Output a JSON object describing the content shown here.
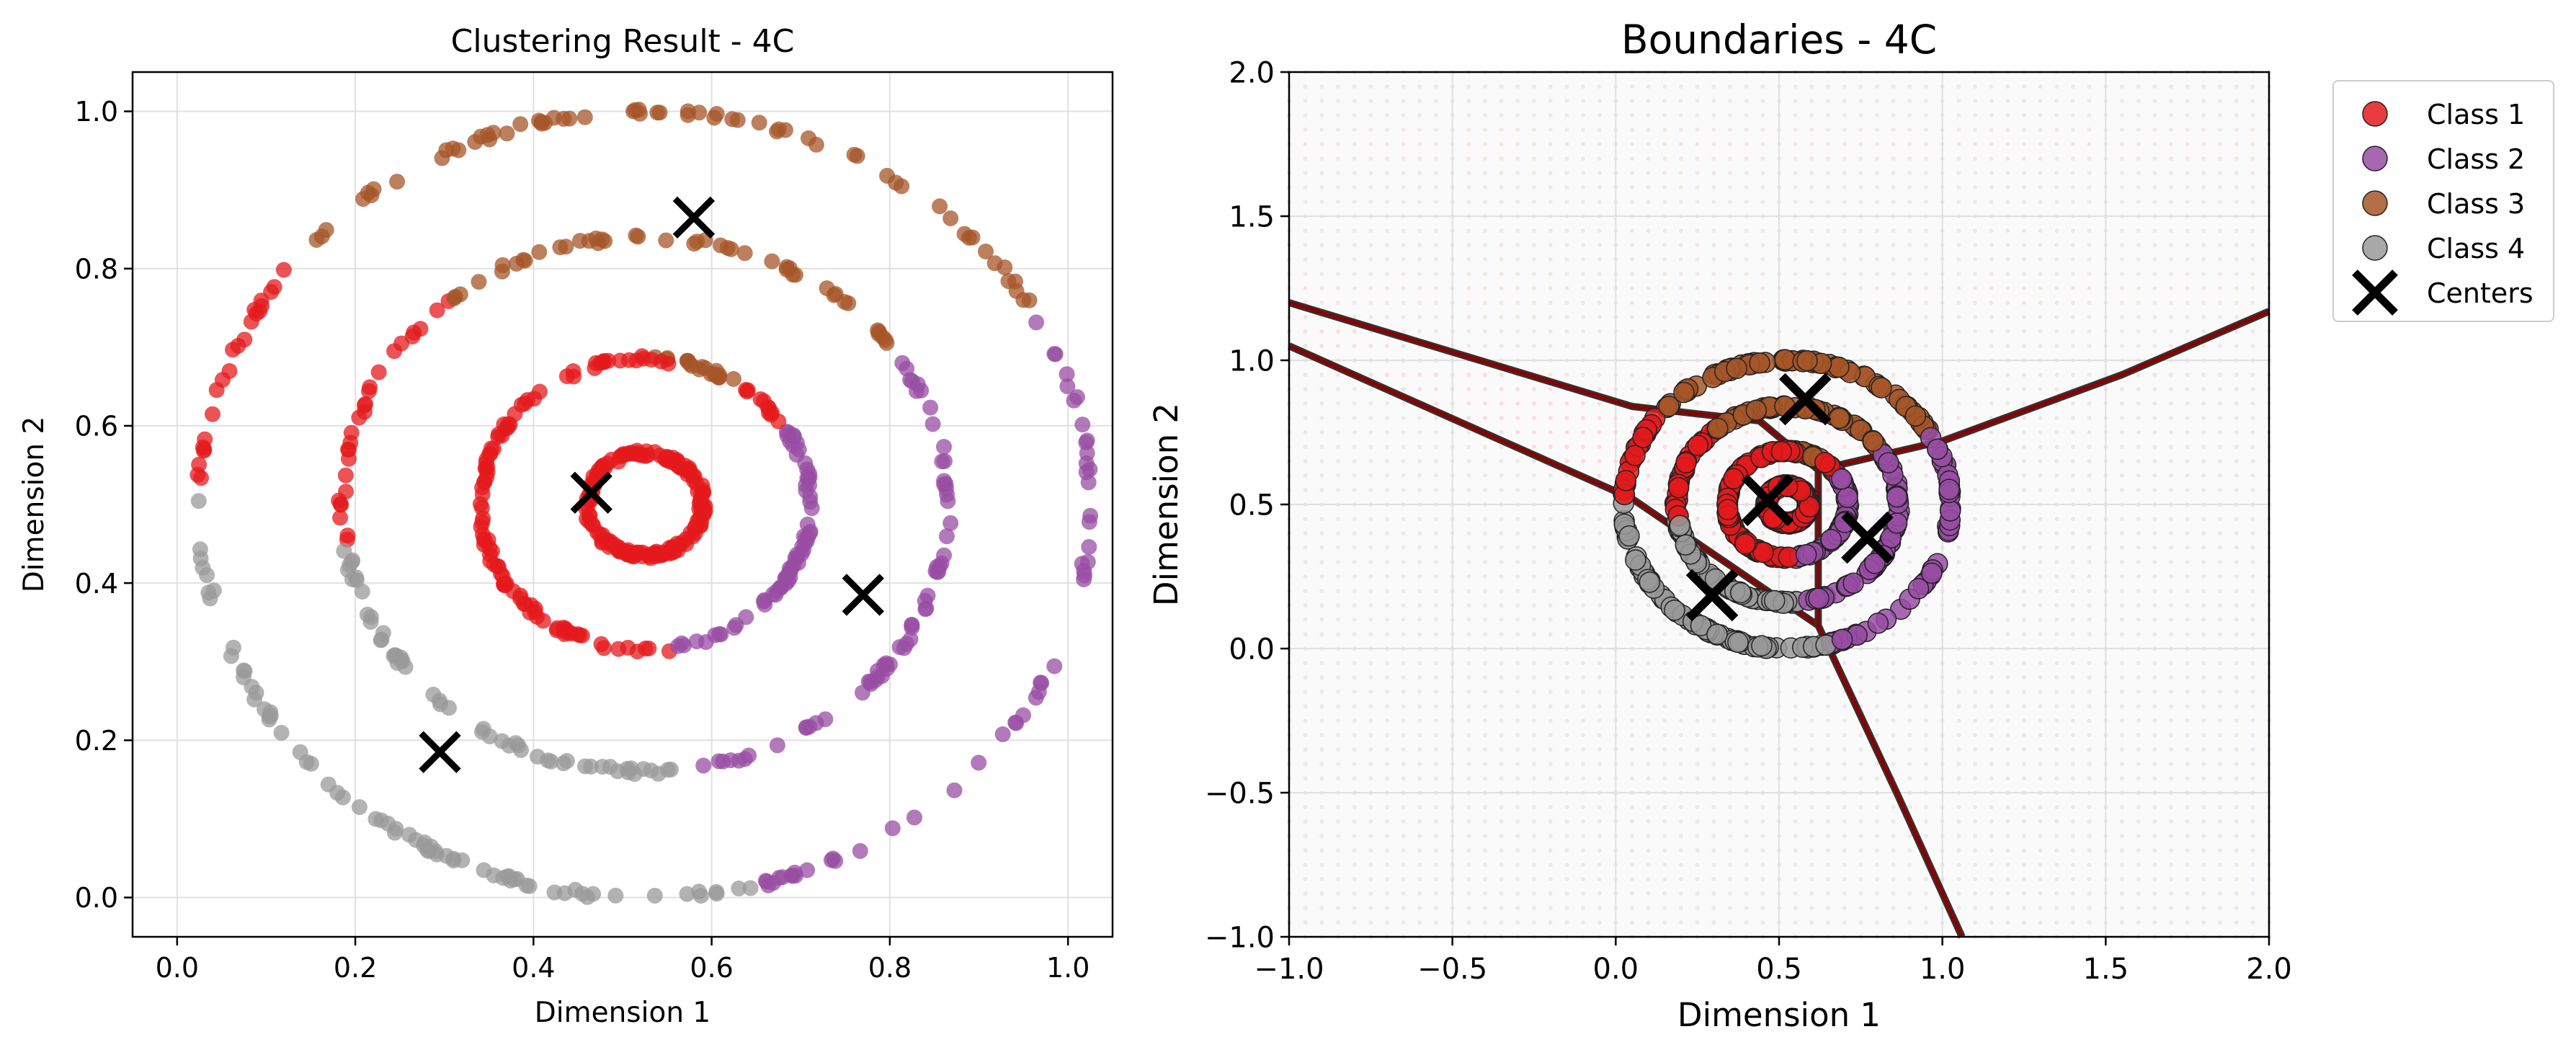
{
  "chart_data": [
    {
      "type": "scatter",
      "title": "Clustering Result - 4C",
      "xlabel": "Dimension 1",
      "ylabel": "Dimension 2",
      "xlim": [
        -0.05,
        1.05
      ],
      "ylim": [
        -0.05,
        1.05
      ],
      "xticks": [
        0.0,
        0.2,
        0.4,
        0.6,
        0.8,
        1.0
      ],
      "yticks": [
        0.0,
        0.2,
        0.4,
        0.6,
        0.8,
        1.0
      ],
      "xtick_labels": [
        "0.0",
        "0.2",
        "0.4",
        "0.6",
        "0.8",
        "1.0"
      ],
      "ytick_labels": [
        "0.0",
        "0.2",
        "0.4",
        "0.6",
        "0.8",
        "1.0"
      ],
      "grid": true,
      "data_center": [
        0.5253,
        0.5
      ],
      "rings": [
        {
          "radius": 0.5,
          "point_count": 210
        },
        {
          "radius": 0.34,
          "point_count": 190
        },
        {
          "radius": 0.185,
          "point_count": 200
        },
        {
          "radius": 0.065,
          "point_count": 170
        }
      ],
      "cluster_colors": [
        "#e41a1c",
        "#984ea3",
        "#a65628",
        "#999999"
      ],
      "centers": [
        {
          "x": 0.465,
          "y": 0.515
        },
        {
          "x": 0.77,
          "y": 0.385
        },
        {
          "x": 0.58,
          "y": 0.865
        },
        {
          "x": 0.295,
          "y": 0.185
        }
      ]
    },
    {
      "type": "scatter",
      "title": "Boundaries - 4C",
      "xlabel": "Dimension 1",
      "ylabel": "Dimension 2",
      "xlim": [
        -1.0,
        2.0
      ],
      "ylim": [
        -1.0,
        2.0
      ],
      "xticks": [
        -1.0,
        -0.5,
        0.0,
        0.5,
        1.0,
        1.5,
        2.0
      ],
      "yticks": [
        -1.0,
        -0.5,
        0.0,
        0.5,
        1.0,
        1.5,
        2.0
      ],
      "xtick_labels": [
        "−1.0",
        "−0.5",
        "0.0",
        "0.5",
        "1.0",
        "1.5",
        "2.0"
      ],
      "ytick_labels": [
        "−1.0",
        "−0.5",
        "0.0",
        "0.5",
        "1.0",
        "1.5",
        "2.0"
      ],
      "grid": true,
      "legend_position": "outside upper right",
      "series": [
        {
          "name": "Class 1",
          "color": "#e41a1c"
        },
        {
          "name": "Class 2",
          "color": "#984ea3"
        },
        {
          "name": "Class 3",
          "color": "#a65628"
        },
        {
          "name": "Class 4",
          "color": "#999999"
        },
        {
          "name": "Centers",
          "color": "#000000"
        }
      ],
      "centers": [
        {
          "x": 0.465,
          "y": 0.515
        },
        {
          "x": 0.77,
          "y": 0.385
        },
        {
          "x": 0.58,
          "y": 0.865
        },
        {
          "x": 0.295,
          "y": 0.185
        }
      ],
      "boundaries": [
        [
          [
            -1.0,
            1.2
          ],
          [
            0.05,
            0.84
          ],
          [
            0.44,
            0.79
          ],
          [
            0.62,
            0.62
          ]
        ],
        [
          [
            0.62,
            0.62
          ],
          [
            1.0,
            0.72
          ],
          [
            1.55,
            0.95
          ],
          [
            2.0,
            1.17
          ]
        ],
        [
          [
            -1.0,
            1.05
          ],
          [
            0.05,
            0.52
          ],
          [
            0.62,
            0.08
          ]
        ],
        [
          [
            0.62,
            0.08
          ],
          [
            0.86,
            -0.5
          ],
          [
            1.06,
            -1.0
          ]
        ],
        [
          [
            0.62,
            0.08
          ],
          [
            0.62,
            0.62
          ]
        ]
      ]
    }
  ]
}
